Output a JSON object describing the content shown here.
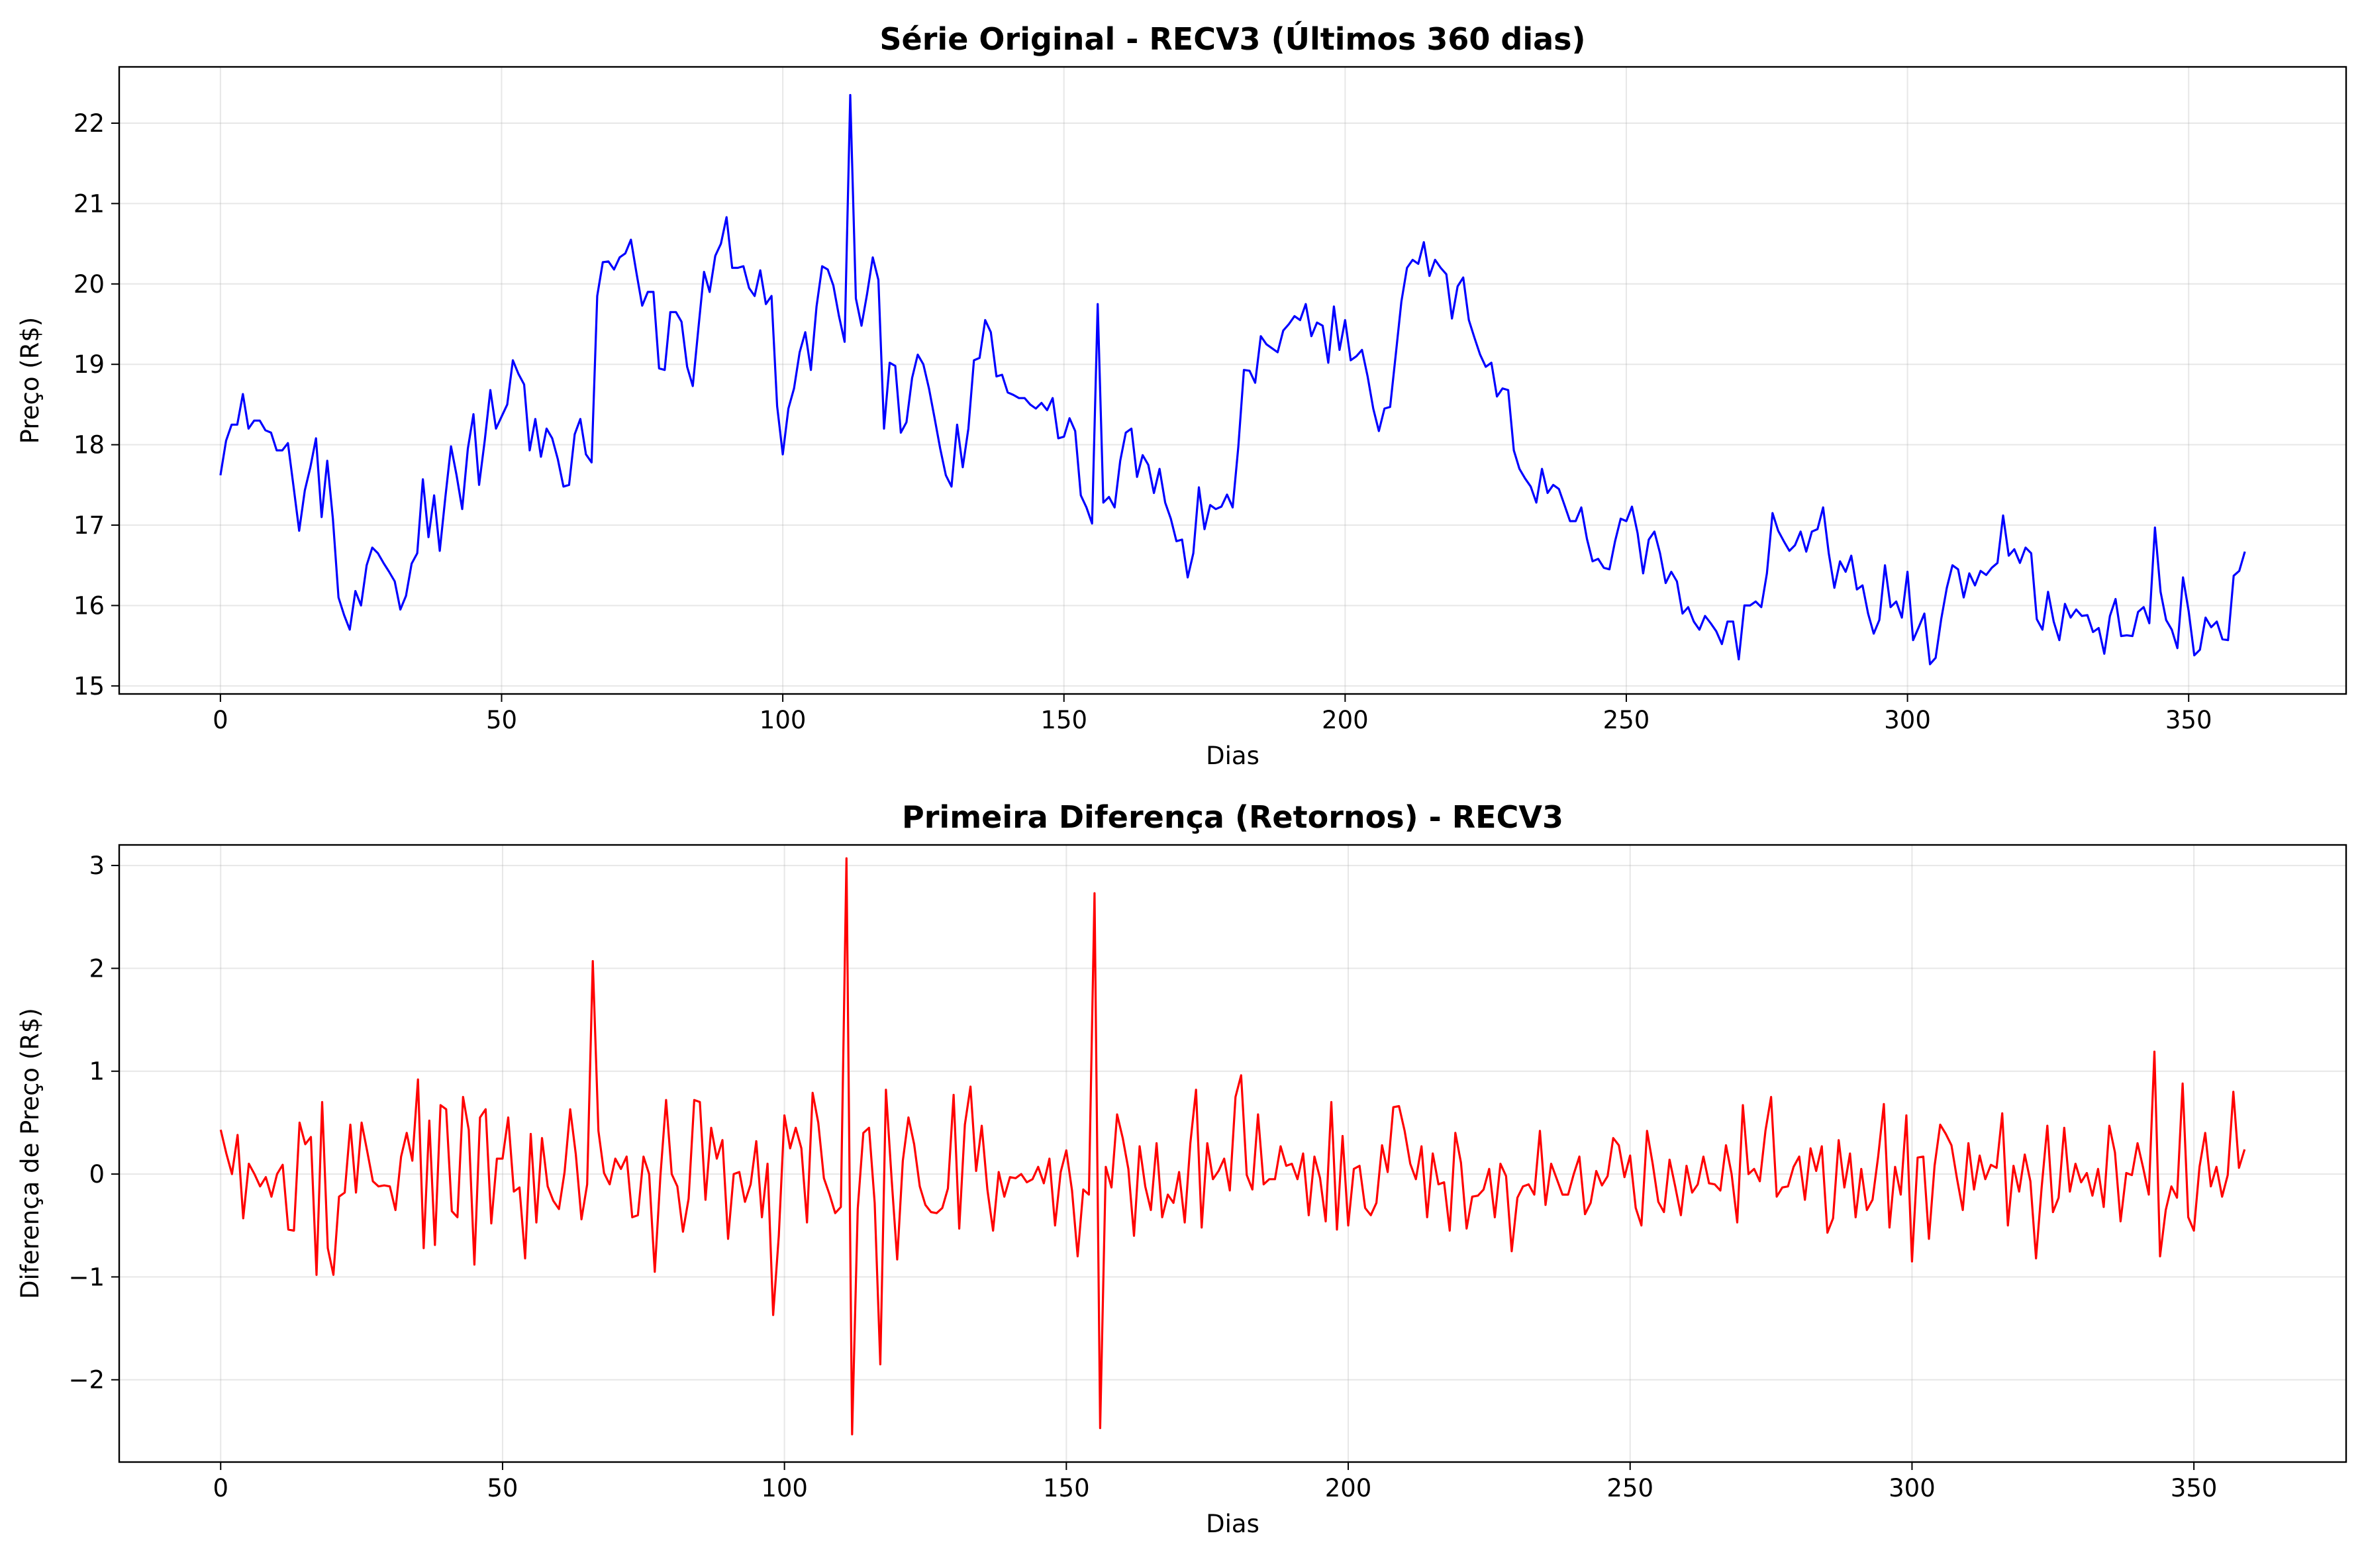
{
  "chart_data": [
    {
      "type": "line",
      "title": "Série Original - RECV3 (Últimos 360 dias)",
      "xlabel": "Dias",
      "ylabel": "Preço (R$)",
      "xlim": [
        -18,
        378
      ],
      "ylim": [
        14.9,
        22.7
      ],
      "xticks": [
        0,
        50,
        100,
        150,
        200,
        250,
        300,
        350
      ],
      "yticks": [
        15,
        16,
        17,
        18,
        19,
        20,
        21,
        22
      ],
      "grid": true,
      "color": "#0000ff",
      "series": [
        {
          "x_start": 0,
          "values": [
            17.62,
            18.05,
            18.25,
            18.25,
            18.63,
            18.2,
            18.3,
            18.3,
            18.18,
            18.15,
            17.93,
            17.93,
            18.02,
            17.48,
            16.93,
            17.43,
            17.72,
            18.08,
            17.1,
            17.8,
            17.08,
            16.1,
            15.88,
            15.7,
            16.18,
            16,
            16.5,
            16.72,
            16.65,
            16.53,
            16.42,
            16.3,
            15.95,
            16.12,
            16.52,
            16.65,
            17.57,
            16.85,
            17.37,
            16.68,
            17.35,
            17.98,
            17.62,
            17.2,
            17.95,
            18.38,
            17.5,
            18.05,
            18.68,
            18.2,
            18.35,
            18.5,
            19.05,
            18.88,
            18.75,
            17.93,
            18.32,
            17.85,
            18.2,
            18.08,
            17.82,
            17.48,
            17.5,
            18.13,
            18.32,
            17.88,
            17.78,
            19.85,
            20.27,
            20.28,
            20.18,
            20.33,
            20.38,
            20.55,
            20.13,
            19.73,
            19.9,
            19.9,
            18.95,
            18.93,
            19.65,
            19.65,
            19.53,
            18.97,
            18.73,
            19.45,
            20.15,
            19.9,
            20.35,
            20.5,
            20.83,
            20.2,
            20.2,
            20.22,
            19.95,
            19.85,
            20.17,
            19.75,
            19.85,
            18.48,
            17.88,
            18.45,
            18.7,
            19.15,
            19.4,
            18.93,
            19.72,
            20.22,
            20.18,
            19.98,
            19.6,
            19.28,
            22.35,
            19.82,
            19.48,
            19.88,
            20.33,
            20.05,
            18.2,
            19.02,
            18.98,
            18.15,
            18.28,
            18.83,
            19.12,
            19,
            18.7,
            18.33,
            17.95,
            17.62,
            17.48,
            18.25,
            17.72,
            18.2,
            19.05,
            19.08,
            19.55,
            19.4,
            18.85,
            18.87,
            18.65,
            18.62,
            18.58,
            18.58,
            18.5,
            18.45,
            18.52,
            18.43,
            18.58,
            18.08,
            18.1,
            18.33,
            18.17,
            17.37,
            17.22,
            17.02,
            19.75,
            17.28,
            17.35,
            17.22,
            17.8,
            18.15,
            18.2,
            17.6,
            17.87,
            17.75,
            17.4,
            17.7,
            17.28,
            17.08,
            16.8,
            16.82,
            16.35,
            16.65,
            17.47,
            16.95,
            17.25,
            17.2,
            17.23,
            17.38,
            17.22,
            17.97,
            18.93,
            18.92,
            18.77,
            19.35,
            19.25,
            19.2,
            19.15,
            19.42,
            19.5,
            19.6,
            19.55,
            19.75,
            19.35,
            19.52,
            19.48,
            19.02,
            19.72,
            19.18,
            19.55,
            19.05,
            19.1,
            19.18,
            18.85,
            18.45,
            18.17,
            18.45,
            18.47,
            19.12,
            19.78,
            20.2,
            20.3,
            20.25,
            20.52,
            20.1,
            20.3,
            20.2,
            20.12,
            19.57,
            19.97,
            20.08,
            19.55,
            19.33,
            19.12,
            18.97,
            19.02,
            18.6,
            18.7,
            18.68,
            17.93,
            17.7,
            17.58,
            17.48,
            17.28,
            17.7,
            17.4,
            17.5,
            17.45,
            17.25,
            17.05,
            17.05,
            17.22,
            16.83,
            16.55,
            16.58,
            16.47,
            16.45,
            16.8,
            17.08,
            17.05,
            17.23,
            16.9,
            16.4,
            16.82,
            16.92,
            16.65,
            16.28,
            16.42,
            16.3,
            15.9,
            15.98,
            15.8,
            15.7,
            15.87,
            15.78,
            15.68,
            15.52,
            15.8,
            15.8,
            15.33,
            16,
            16,
            16.05,
            15.98,
            16.4,
            17.15,
            16.93,
            16.8,
            16.68,
            16.75,
            16.92,
            16.67,
            16.92,
            16.95,
            17.22,
            16.65,
            16.22,
            16.55,
            16.42,
            16.62,
            16.2,
            16.25,
            15.9,
            15.65,
            15.82,
            16.5,
            15.98,
            16.05,
            15.85,
            16.42,
            15.57,
            15.73,
            15.9,
            15.27,
            15.35,
            15.83,
            16.22,
            16.5,
            16.45,
            16.1,
            16.4,
            16.25,
            16.43,
            16.38,
            16.47,
            16.53,
            17.12,
            16.62,
            16.7,
            16.53,
            16.72,
            16.65,
            15.83,
            15.7,
            16.17,
            15.8,
            15.57,
            16.02,
            15.85,
            15.95,
            15.87,
            15.88,
            15.67,
            15.72,
            15.4,
            15.87,
            16.08,
            15.62,
            15.63,
            15.62,
            15.92,
            15.98,
            15.78,
            16.97,
            16.17,
            15.82,
            15.7,
            15.47,
            16.35,
            15.93,
            15.38,
            15.45,
            15.85,
            15.73,
            15.8,
            15.58,
            15.57,
            16.37,
            16.43,
            16.67
          ]
        }
      ]
    },
    {
      "type": "line",
      "title": "Primeira Diferença (Retornos) - RECV3",
      "xlabel": "Dias",
      "ylabel": "Diferença de Preço (R$)",
      "xlim": [
        -18,
        377
      ],
      "ylim": [
        -2.8,
        3.2
      ],
      "xticks": [
        0,
        50,
        100,
        150,
        200,
        250,
        300,
        350
      ],
      "yticks": [
        -2,
        -1,
        0,
        1,
        2,
        3
      ],
      "grid": true,
      "color": "#ff0000",
      "series": [
        {
          "x_start": 0,
          "values": [
            0.43,
            0.2,
            0,
            0.38,
            -0.43,
            0.1,
            0,
            -0.12,
            -0.03,
            -0.22,
            0,
            0.09,
            -0.54,
            -0.55,
            0.5,
            0.29,
            0.36,
            -0.98,
            0.7,
            -0.72,
            -0.98,
            -0.22,
            -0.18,
            0.48,
            -0.18,
            0.5,
            0.22,
            -0.07,
            -0.12,
            -0.11,
            -0.12,
            -0.35,
            0.17,
            0.4,
            0.13,
            0.92,
            -0.72,
            0.52,
            -0.69,
            0.67,
            0.63,
            -0.36,
            -0.42,
            0.75,
            0.43,
            -0.88,
            0.55,
            0.63,
            -0.48,
            0.15,
            0.15,
            0.55,
            -0.17,
            -0.13,
            -0.82,
            0.39,
            -0.47,
            0.35,
            -0.12,
            -0.26,
            -0.34,
            0.02,
            0.63,
            0.19,
            -0.44,
            -0.1,
            2.07,
            0.42,
            0.01,
            -0.1,
            0.15,
            0.05,
            0.17,
            -0.42,
            -0.4,
            0.17,
            0,
            -0.95,
            -0.02,
            0.72,
            0,
            -0.12,
            -0.56,
            -0.24,
            0.72,
            0.7,
            -0.25,
            0.45,
            0.15,
            0.33,
            -0.63,
            0,
            0.02,
            -0.27,
            -0.1,
            0.32,
            -0.42,
            0.1,
            -1.37,
            -0.6,
            0.57,
            0.25,
            0.45,
            0.25,
            -0.47,
            0.79,
            0.5,
            -0.04,
            -0.2,
            -0.38,
            -0.32,
            3.07,
            -2.53,
            -0.34,
            0.4,
            0.45,
            -0.28,
            -1.85,
            0.82,
            -0.04,
            -0.83,
            0.13,
            0.55,
            0.29,
            -0.12,
            -0.3,
            -0.37,
            -0.38,
            -0.33,
            -0.14,
            0.77,
            -0.53,
            0.48,
            0.85,
            0.03,
            0.47,
            -0.15,
            -0.55,
            0.02,
            -0.22,
            -0.03,
            -0.04,
            0,
            -0.08,
            -0.05,
            0.07,
            -0.09,
            0.15,
            -0.5,
            0.02,
            0.23,
            -0.16,
            -0.8,
            -0.15,
            -0.2,
            2.73,
            -2.47,
            0.07,
            -0.13,
            0.58,
            0.35,
            0.05,
            -0.6,
            0.27,
            -0.12,
            -0.35,
            0.3,
            -0.42,
            -0.2,
            -0.28,
            0.02,
            -0.47,
            0.3,
            0.82,
            -0.52,
            0.3,
            -0.05,
            0.03,
            0.15,
            -0.16,
            0.75,
            0.96,
            -0.01,
            -0.15,
            0.58,
            -0.1,
            -0.05,
            -0.05,
            0.27,
            0.08,
            0.1,
            -0.05,
            0.2,
            -0.4,
            0.17,
            -0.04,
            -0.46,
            0.7,
            -0.54,
            0.37,
            -0.5,
            0.05,
            0.08,
            -0.33,
            -0.4,
            -0.28,
            0.28,
            0.02,
            0.65,
            0.66,
            0.42,
            0.1,
            -0.05,
            0.27,
            -0.42,
            0.2,
            -0.1,
            -0.08,
            -0.55,
            0.4,
            0.11,
            -0.53,
            -0.22,
            -0.21,
            -0.15,
            0.05,
            -0.42,
            0.1,
            -0.02,
            -0.75,
            -0.23,
            -0.12,
            -0.1,
            -0.2,
            0.42,
            -0.3,
            0.1,
            -0.05,
            -0.2,
            -0.2,
            0,
            0.17,
            -0.39,
            -0.28,
            0.03,
            -0.11,
            -0.02,
            0.35,
            0.28,
            -0.03,
            0.18,
            -0.33,
            -0.5,
            0.42,
            0.1,
            -0.27,
            -0.37,
            0.14,
            -0.12,
            -0.4,
            0.08,
            -0.18,
            -0.1,
            0.17,
            -0.09,
            -0.1,
            -0.16,
            0.28,
            0,
            -0.47,
            0.67,
            0,
            0.05,
            -0.07,
            0.42,
            0.75,
            -0.22,
            -0.13,
            -0.12,
            0.07,
            0.17,
            -0.25,
            0.25,
            0.03,
            0.27,
            -0.57,
            -0.43,
            0.33,
            -0.13,
            0.2,
            -0.42,
            0.05,
            -0.35,
            -0.25,
            0.17,
            0.68,
            -0.52,
            0.07,
            -0.2,
            0.57,
            -0.85,
            0.16,
            0.17,
            -0.63,
            0.08,
            0.48,
            0.39,
            0.28,
            -0.05,
            -0.35,
            0.3,
            -0.15,
            0.18,
            -0.05,
            0.09,
            0.06,
            0.59,
            -0.5,
            0.08,
            -0.17,
            0.19,
            -0.07,
            -0.82,
            -0.13,
            0.47,
            -0.37,
            -0.23,
            0.45,
            -0.17,
            0.1,
            -0.08,
            0.01,
            -0.21,
            0.05,
            -0.32,
            0.47,
            0.21,
            -0.46,
            0.01,
            -0.01,
            0.3,
            0.06,
            -0.2,
            1.19,
            -0.8,
            -0.35,
            -0.12,
            -0.23,
            0.88,
            -0.42,
            -0.55,
            0.07,
            0.4,
            -0.12,
            0.07,
            -0.22,
            -0.01,
            0.8,
            0.06,
            0.24
          ]
        }
      ]
    }
  ]
}
